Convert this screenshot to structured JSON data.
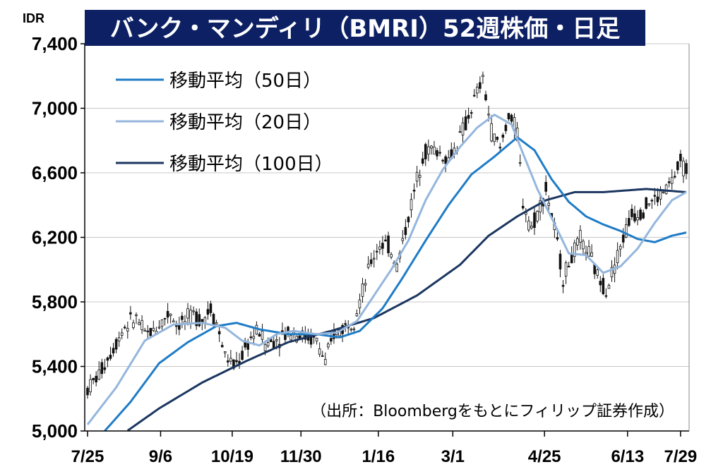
{
  "chart_data": {
    "type": "candlestick",
    "title": "バンク・マンディリ（BMRI）52週株価・日足",
    "unit_label": "IDR",
    "ylim": [
      5000,
      7400
    ],
    "yticks": [
      5000,
      5400,
      5800,
      6200,
      6600,
      7000,
      7400
    ],
    "ytick_labels": [
      "5,000",
      "5,400",
      "5,800",
      "6,200",
      "6,600",
      "7,000",
      "7,400"
    ],
    "xticks": [
      "7/25",
      "9/6",
      "10/19",
      "11/30",
      "1/16",
      "3/1",
      "4/25",
      "6/13",
      "7/29"
    ],
    "grid": true,
    "legend": [
      {
        "label": "移動平均（50日）",
        "color": "#1f7cc6"
      },
      {
        "label": "移動平均（20日）",
        "color": "#94b6dd"
      },
      {
        "label": "移動平均（100日）",
        "color": "#1b3660"
      }
    ],
    "source_note": "（出所：Bloombergをもとにフィリップ証券作成）",
    "price_path": [
      [
        0,
        5260
      ],
      [
        4,
        5350
      ],
      [
        7,
        5450
      ],
      [
        10,
        5550
      ],
      [
        13,
        5650
      ],
      [
        17,
        5700
      ],
      [
        20,
        5600
      ],
      [
        23,
        5620
      ],
      [
        26,
        5680
      ],
      [
        29,
        5740
      ],
      [
        31,
        5660
      ],
      [
        34,
        5680
      ],
      [
        37,
        5720
      ],
      [
        40,
        5690
      ],
      [
        43,
        5760
      ],
      [
        45,
        5670
      ],
      [
        48,
        5470
      ],
      [
        51,
        5400
      ],
      [
        54,
        5470
      ],
      [
        57,
        5580
      ],
      [
        60,
        5620
      ],
      [
        62,
        5540
      ],
      [
        65,
        5560
      ],
      [
        68,
        5590
      ],
      [
        71,
        5620
      ],
      [
        74,
        5600
      ],
      [
        77,
        5580
      ],
      [
        80,
        5560
      ],
      [
        83,
        5420
      ],
      [
        86,
        5600
      ],
      [
        90,
        5650
      ],
      [
        93,
        5700
      ],
      [
        96,
        5860
      ],
      [
        99,
        6050
      ],
      [
        102,
        6160
      ],
      [
        105,
        6150
      ],
      [
        108,
        6020
      ],
      [
        111,
        6250
      ],
      [
        114,
        6480
      ],
      [
        117,
        6720
      ],
      [
        120,
        6750
      ],
      [
        123,
        6720
      ],
      [
        126,
        6680
      ],
      [
        129,
        6780
      ],
      [
        132,
        6900
      ],
      [
        135,
        7050
      ],
      [
        138,
        7180
      ],
      [
        141,
        6860
      ],
      [
        144,
        6750
      ],
      [
        147,
        6960
      ],
      [
        150,
        6850
      ],
      [
        152,
        6420
      ],
      [
        155,
        6260
      ],
      [
        157,
        6350
      ],
      [
        160,
        6500
      ],
      [
        163,
        6250
      ],
      [
        166,
        5950
      ],
      [
        169,
        6080
      ],
      [
        172,
        6180
      ],
      [
        175,
        6100
      ],
      [
        178,
        5960
      ],
      [
        181,
        5880
      ],
      [
        184,
        6030
      ],
      [
        187,
        6200
      ],
      [
        190,
        6340
      ],
      [
        193,
        6360
      ],
      [
        196,
        6420
      ],
      [
        199,
        6440
      ],
      [
        202,
        6500
      ],
      [
        205,
        6580
      ],
      [
        207,
        6660
      ],
      [
        209,
        6620
      ]
    ],
    "ma20": [
      [
        0,
        5040
      ],
      [
        10,
        5270
      ],
      [
        20,
        5560
      ],
      [
        30,
        5660
      ],
      [
        40,
        5670
      ],
      [
        48,
        5640
      ],
      [
        54,
        5560
      ],
      [
        60,
        5530
      ],
      [
        66,
        5600
      ],
      [
        72,
        5620
      ],
      [
        80,
        5600
      ],
      [
        87,
        5610
      ],
      [
        94,
        5680
      ],
      [
        100,
        5840
      ],
      [
        106,
        6000
      ],
      [
        112,
        6180
      ],
      [
        118,
        6430
      ],
      [
        124,
        6620
      ],
      [
        130,
        6760
      ],
      [
        136,
        6880
      ],
      [
        142,
        6960
      ],
      [
        148,
        6900
      ],
      [
        152,
        6720
      ],
      [
        157,
        6500
      ],
      [
        162,
        6320
      ],
      [
        168,
        6100
      ],
      [
        174,
        6090
      ],
      [
        180,
        5980
      ],
      [
        186,
        6020
      ],
      [
        192,
        6130
      ],
      [
        198,
        6290
      ],
      [
        204,
        6430
      ],
      [
        209,
        6480
      ]
    ],
    "ma50": [
      [
        5,
        4980
      ],
      [
        15,
        5180
      ],
      [
        25,
        5420
      ],
      [
        35,
        5550
      ],
      [
        45,
        5650
      ],
      [
        52,
        5670
      ],
      [
        60,
        5630
      ],
      [
        70,
        5600
      ],
      [
        80,
        5600
      ],
      [
        88,
        5580
      ],
      [
        95,
        5620
      ],
      [
        103,
        5760
      ],
      [
        110,
        5950
      ],
      [
        118,
        6180
      ],
      [
        126,
        6400
      ],
      [
        134,
        6590
      ],
      [
        142,
        6700
      ],
      [
        150,
        6820
      ],
      [
        156,
        6740
      ],
      [
        162,
        6560
      ],
      [
        168,
        6420
      ],
      [
        174,
        6330
      ],
      [
        180,
        6280
      ],
      [
        186,
        6240
      ],
      [
        192,
        6190
      ],
      [
        198,
        6170
      ],
      [
        204,
        6210
      ],
      [
        209,
        6230
      ]
    ],
    "ma100": [
      [
        13,
        4990
      ],
      [
        25,
        5140
      ],
      [
        40,
        5300
      ],
      [
        55,
        5430
      ],
      [
        70,
        5550
      ],
      [
        85,
        5620
      ],
      [
        100,
        5700
      ],
      [
        115,
        5840
      ],
      [
        130,
        6030
      ],
      [
        140,
        6210
      ],
      [
        150,
        6330
      ],
      [
        160,
        6430
      ],
      [
        170,
        6480
      ],
      [
        180,
        6480
      ],
      [
        195,
        6500
      ],
      [
        209,
        6480
      ]
    ]
  }
}
